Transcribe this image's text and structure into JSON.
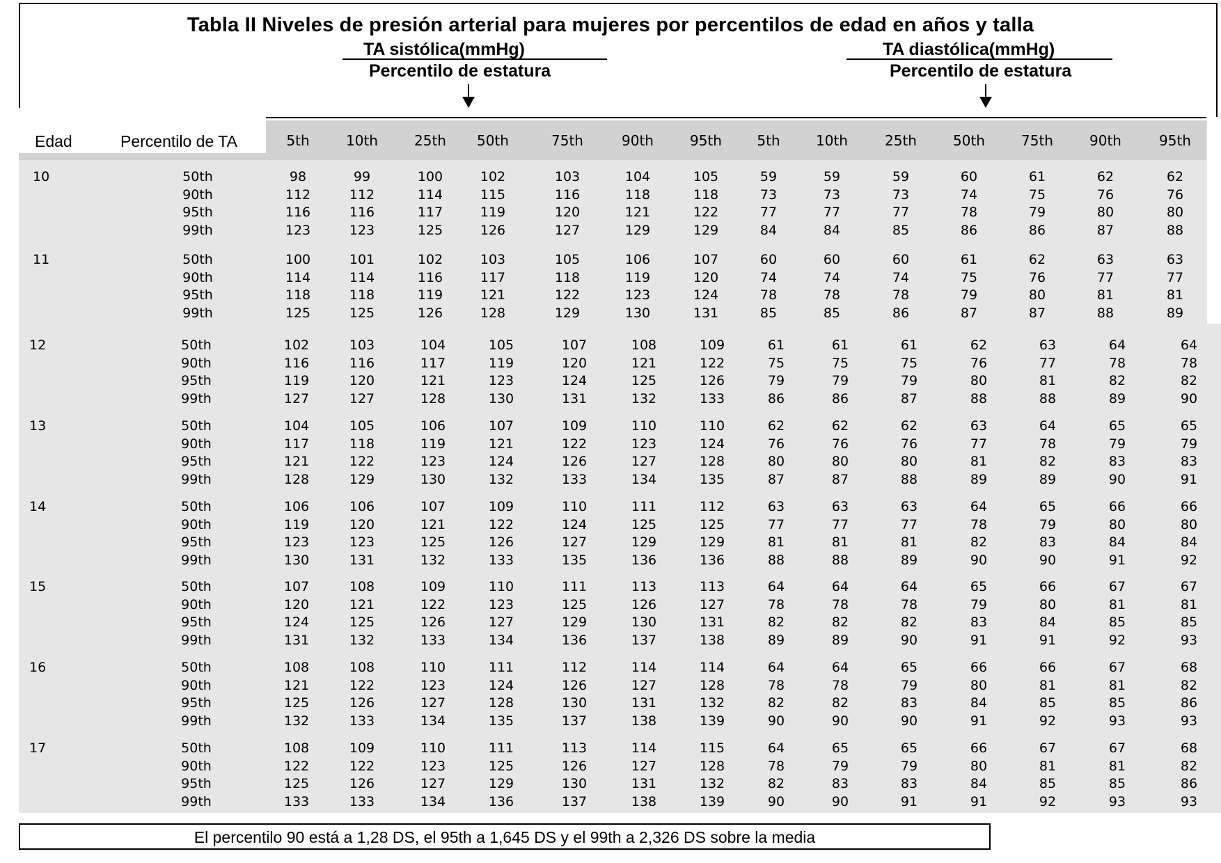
{
  "title": "Tabla II  Niveles de presión  arterial para mujeres   por percentilos de edad en años y talla",
  "systolic_label": "TA sistólica(mmHg)",
  "diastolic_label": "TA diastólica(mmHg)",
  "stature_label_sys": "Percentilo de estatura",
  "stature_label_dia": "Percentilo de estatura",
  "col_age": "Edad",
  "col_bp_pct": "Percentilo de TA",
  "height_cols": [
    "5th",
    "10th",
    "25th",
    "50th",
    "75th",
    "90th",
    "95th",
    "5th",
    "10th",
    "25th",
    "50th",
    "75th",
    "90th",
    "95th"
  ],
  "groups": [
    {
      "age": "10",
      "rows": [
        {
          "pct": "50th",
          "vals": [
            "98",
            "99",
            "100",
            "102",
            "103",
            "104",
            "105",
            "59",
            "59",
            "59",
            "60",
            "61",
            "62",
            "62"
          ]
        },
        {
          "pct": "90th",
          "vals": [
            "112",
            "112",
            "114",
            "115",
            "116",
            "118",
            "118",
            "73",
            "73",
            "73",
            "74",
            "75",
            "76",
            "76"
          ]
        },
        {
          "pct": "95th",
          "vals": [
            "116",
            "116",
            "117",
            "119",
            "120",
            "121",
            "122",
            "77",
            "77",
            "77",
            "78",
            "79",
            "80",
            "80"
          ]
        },
        {
          "pct": "99th",
          "vals": [
            "123",
            "123",
            "125",
            "126",
            "127",
            "129",
            "129",
            "84",
            "84",
            "85",
            "86",
            "86",
            "87",
            "88"
          ]
        }
      ]
    },
    {
      "age": "11",
      "rows": [
        {
          "pct": "50th",
          "vals": [
            "100",
            "101",
            "102",
            "103",
            "105",
            "106",
            "107",
            "60",
            "60",
            "60",
            "61",
            "62",
            "63",
            "63"
          ]
        },
        {
          "pct": "90th",
          "vals": [
            "114",
            "114",
            "116",
            "117",
            "118",
            "119",
            "120",
            "74",
            "74",
            "74",
            "75",
            "76",
            "77",
            "77"
          ]
        },
        {
          "pct": "95th",
          "vals": [
            "118",
            "118",
            "119",
            "121",
            "122",
            "123",
            "124",
            "78",
            "78",
            "78",
            "79",
            "80",
            "81",
            "81"
          ]
        },
        {
          "pct": "99th",
          "vals": [
            "125",
            "125",
            "126",
            "128",
            "129",
            "130",
            "131",
            "85",
            "85",
            "86",
            "87",
            "87",
            "88",
            "89"
          ]
        }
      ]
    },
    {
      "age": "12",
      "rows": [
        {
          "pct": "50th",
          "vals": [
            "102",
            "103",
            "104",
            "105",
            "107",
            "108",
            "109",
            "61",
            "61",
            "61",
            "62",
            "63",
            "64",
            "64"
          ]
        },
        {
          "pct": "90th",
          "vals": [
            "116",
            "116",
            "117",
            "119",
            "120",
            "121",
            "122",
            "75",
            "75",
            "75",
            "76",
            "77",
            "78",
            "78"
          ]
        },
        {
          "pct": "95th",
          "vals": [
            "119",
            "120",
            "121",
            "123",
            "124",
            "125",
            "126",
            "79",
            "79",
            "79",
            "80",
            "81",
            "82",
            "82"
          ]
        },
        {
          "pct": "99th",
          "vals": [
            "127",
            "127",
            "128",
            "130",
            "131",
            "132",
            "133",
            "86",
            "86",
            "87",
            "88",
            "88",
            "89",
            "90"
          ]
        }
      ]
    },
    {
      "age": "13",
      "rows": [
        {
          "pct": "50th",
          "vals": [
            "104",
            "105",
            "106",
            "107",
            "109",
            "110",
            "110",
            "62",
            "62",
            "62",
            "63",
            "64",
            "65",
            "65"
          ]
        },
        {
          "pct": "90th",
          "vals": [
            "117",
            "118",
            "119",
            "121",
            "122",
            "123",
            "124",
            "76",
            "76",
            "76",
            "77",
            "78",
            "79",
            "79"
          ]
        },
        {
          "pct": "95th",
          "vals": [
            "121",
            "122",
            "123",
            "124",
            "126",
            "127",
            "128",
            "80",
            "80",
            "80",
            "81",
            "82",
            "83",
            "83"
          ]
        },
        {
          "pct": "99th",
          "vals": [
            "128",
            "129",
            "130",
            "132",
            "133",
            "134",
            "135",
            "87",
            "87",
            "88",
            "89",
            "89",
            "90",
            "91"
          ]
        }
      ]
    },
    {
      "age": "14",
      "rows": [
        {
          "pct": "50th",
          "vals": [
            "106",
            "106",
            "107",
            "109",
            "110",
            "111",
            "112",
            "63",
            "63",
            "63",
            "64",
            "65",
            "66",
            "66"
          ]
        },
        {
          "pct": "90th",
          "vals": [
            "119",
            "120",
            "121",
            "122",
            "124",
            "125",
            "125",
            "77",
            "77",
            "77",
            "78",
            "79",
            "80",
            "80"
          ]
        },
        {
          "pct": "95th",
          "vals": [
            "123",
            "123",
            "125",
            "126",
            "127",
            "129",
            "129",
            "81",
            "81",
            "81",
            "82",
            "83",
            "84",
            "84"
          ]
        },
        {
          "pct": "99th",
          "vals": [
            "130",
            "131",
            "132",
            "133",
            "135",
            "136",
            "136",
            "88",
            "88",
            "89",
            "90",
            "90",
            "91",
            "92"
          ]
        }
      ]
    },
    {
      "age": "15",
      "rows": [
        {
          "pct": "50th",
          "vals": [
            "107",
            "108",
            "109",
            "110",
            "111",
            "113",
            "113",
            "64",
            "64",
            "64",
            "65",
            "66",
            "67",
            "67"
          ]
        },
        {
          "pct": "90th",
          "vals": [
            "120",
            "121",
            "122",
            "123",
            "125",
            "126",
            "127",
            "78",
            "78",
            "78",
            "79",
            "80",
            "81",
            "81"
          ]
        },
        {
          "pct": "95th",
          "vals": [
            "124",
            "125",
            "126",
            "127",
            "129",
            "130",
            "131",
            "82",
            "82",
            "82",
            "83",
            "84",
            "85",
            "85"
          ]
        },
        {
          "pct": "99th",
          "vals": [
            "131",
            "132",
            "133",
            "134",
            "136",
            "137",
            "138",
            "89",
            "89",
            "90",
            "91",
            "91",
            "92",
            "93"
          ]
        }
      ]
    },
    {
      "age": "16",
      "rows": [
        {
          "pct": "50th",
          "vals": [
            "108",
            "108",
            "110",
            "111",
            "112",
            "114",
            "114",
            "64",
            "64",
            "65",
            "66",
            "66",
            "67",
            "68"
          ]
        },
        {
          "pct": "90th",
          "vals": [
            "121",
            "122",
            "123",
            "124",
            "126",
            "127",
            "128",
            "78",
            "78",
            "79",
            "80",
            "81",
            "81",
            "82"
          ]
        },
        {
          "pct": "95th",
          "vals": [
            "125",
            "126",
            "127",
            "128",
            "130",
            "131",
            "132",
            "82",
            "82",
            "83",
            "84",
            "85",
            "85",
            "86"
          ]
        },
        {
          "pct": "99th",
          "vals": [
            "132",
            "133",
            "134",
            "135",
            "137",
            "138",
            "139",
            "90",
            "90",
            "90",
            "91",
            "92",
            "93",
            "93"
          ]
        }
      ]
    },
    {
      "age": "17",
      "rows": [
        {
          "pct": "50th",
          "vals": [
            "108",
            "109",
            "110",
            "111",
            "113",
            "114",
            "115",
            "64",
            "65",
            "65",
            "66",
            "67",
            "67",
            "68"
          ]
        },
        {
          "pct": "90th",
          "vals": [
            "122",
            "122",
            "123",
            "125",
            "126",
            "127",
            "128",
            "78",
            "79",
            "79",
            "80",
            "81",
            "81",
            "82"
          ]
        },
        {
          "pct": "95th",
          "vals": [
            "125",
            "126",
            "127",
            "129",
            "130",
            "131",
            "132",
            "82",
            "83",
            "83",
            "84",
            "85",
            "85",
            "86"
          ]
        },
        {
          "pct": "99th",
          "vals": [
            "133",
            "133",
            "134",
            "136",
            "137",
            "138",
            "139",
            "90",
            "90",
            "91",
            "91",
            "92",
            "93",
            "93"
          ]
        }
      ]
    }
  ],
  "footer": "El percentilo 90 está a  1,28 DS, el 95th a 1,645 DS y el 99th a 2,326 DS sobre la media"
}
